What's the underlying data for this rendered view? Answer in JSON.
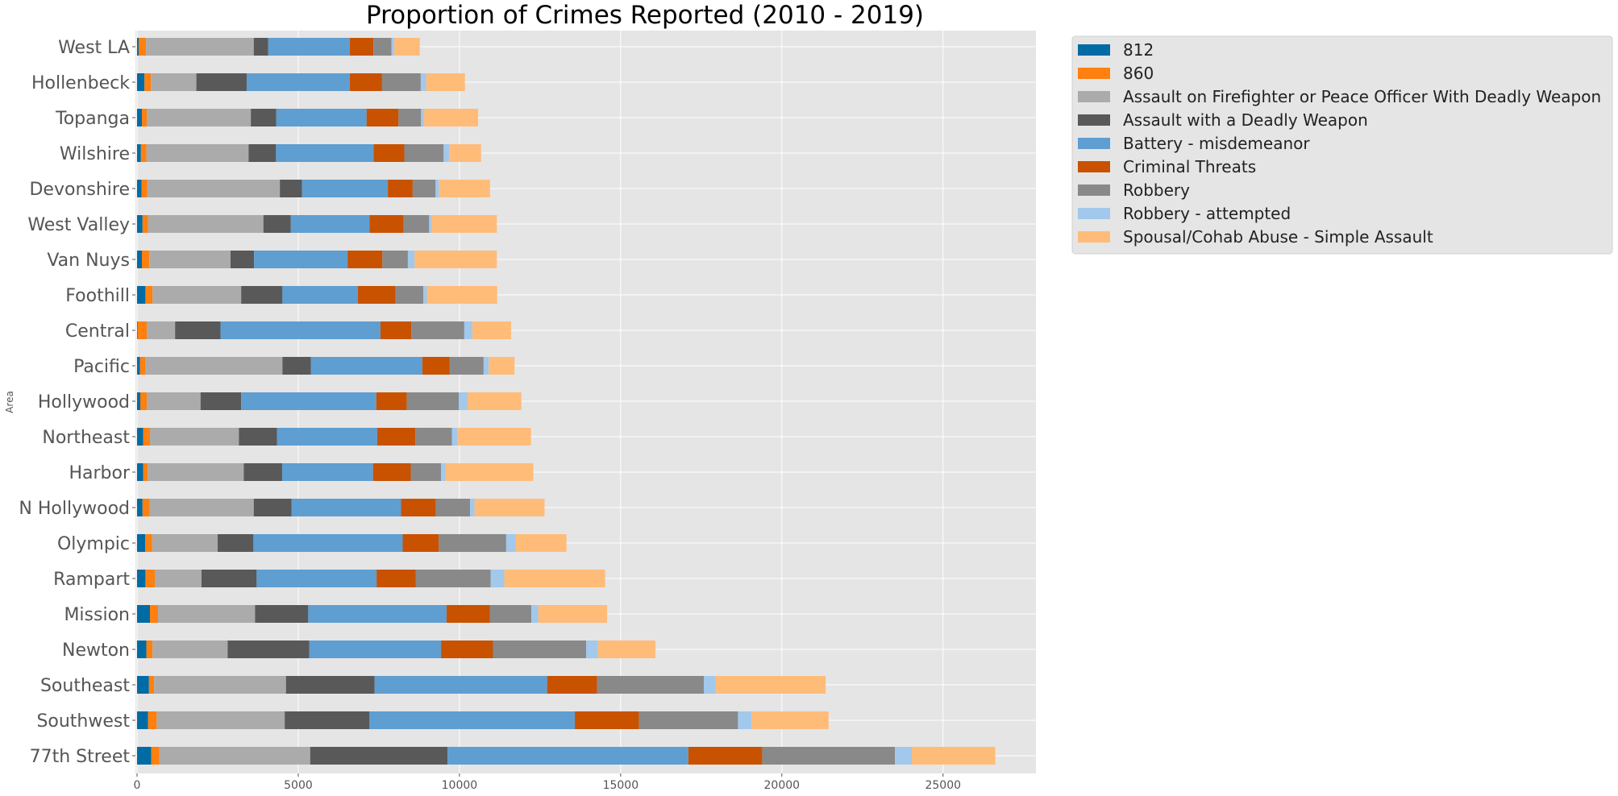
{
  "chart_data": {
    "type": "bar",
    "orientation": "horizontal",
    "stacked": true,
    "title": "Proportion of Crimes Reported (2010 - 2019)",
    "xlabel": "",
    "ylabel": "Area",
    "xlim": [
      0,
      28000
    ],
    "xticks": [
      0,
      5000,
      10000,
      15000,
      20000,
      25000
    ],
    "xtick_labels": [
      "0",
      "5000",
      "10000",
      "15000",
      "20000",
      "25000"
    ],
    "grid": true,
    "legend_position": "outside-top-right",
    "categories": [
      "West LA",
      "Hollenbeck",
      "Topanga",
      "Wilshire",
      "Devonshire",
      "West Valley",
      "Van Nuys",
      "Foothill",
      "Central",
      "Pacific",
      "Hollywood",
      "Northeast",
      "Harbor",
      "N Hollywood",
      "Olympic",
      "Rampart",
      "Mission",
      "Newton",
      "Southeast",
      "Southwest",
      "77th Street"
    ],
    "series": [
      {
        "name": "812",
        "color": "#006ba4",
        "values": [
          50,
          230,
          150,
          120,
          140,
          170,
          150,
          260,
          20,
          90,
          100,
          190,
          190,
          170,
          250,
          260,
          400,
          290,
          370,
          340,
          440
        ]
      },
      {
        "name": "860",
        "color": "#ff800e",
        "values": [
          230,
          200,
          150,
          170,
          180,
          170,
          230,
          220,
          280,
          170,
          200,
          210,
          140,
          220,
          220,
          290,
          250,
          190,
          160,
          270,
          250
        ]
      },
      {
        "name": "Assault on Firefighter or Peace Officer With Deadly Weapon",
        "color": "#ababab",
        "values": [
          3340,
          1410,
          3230,
          3170,
          4110,
          3580,
          2520,
          2750,
          880,
          4250,
          1670,
          2760,
          2980,
          3230,
          2030,
          1450,
          3010,
          2330,
          4090,
          3970,
          4680
        ]
      },
      {
        "name": "Assault with a Deadly Weapon",
        "color": "#595959",
        "values": [
          450,
          1560,
          790,
          850,
          690,
          850,
          730,
          1280,
          1410,
          880,
          1260,
          1180,
          1190,
          1170,
          1110,
          1710,
          1650,
          2530,
          2750,
          2630,
          4260
        ]
      },
      {
        "name": "Battery - misdemeanor",
        "color": "#5f9ed1",
        "values": [
          2530,
          3200,
          2800,
          3030,
          2660,
          2440,
          2900,
          2340,
          4960,
          3460,
          4190,
          3110,
          2820,
          3400,
          4630,
          3720,
          4290,
          4090,
          5350,
          6370,
          7470
        ]
      },
      {
        "name": "Criminal Threats",
        "color": "#c85200",
        "values": [
          730,
          1000,
          990,
          950,
          770,
          1060,
          1080,
          1170,
          960,
          840,
          950,
          1180,
          1170,
          1080,
          1120,
          1210,
          1340,
          1610,
          1550,
          1990,
          2290
        ]
      },
      {
        "name": "Robbery",
        "color": "#898989",
        "values": [
          560,
          1200,
          700,
          1220,
          710,
          790,
          790,
          860,
          1640,
          1060,
          1610,
          1140,
          940,
          1060,
          2090,
          2330,
          1290,
          2890,
          3310,
          3070,
          4120
        ]
      },
      {
        "name": "Robbery - attempted",
        "color": "#a2c8ec",
        "values": [
          90,
          170,
          90,
          170,
          110,
          80,
          210,
          110,
          250,
          160,
          260,
          160,
          140,
          140,
          300,
          420,
          210,
          370,
          370,
          420,
          520
        ]
      },
      {
        "name": "Spousal/Cohab Abuse - Simple Assault",
        "color": "#ffbc79",
        "values": [
          790,
          1200,
          1680,
          990,
          1580,
          2020,
          2550,
          2180,
          1200,
          800,
          1680,
          2290,
          2720,
          2170,
          1570,
          3130,
          2140,
          1780,
          3410,
          2390,
          2590
        ]
      }
    ]
  }
}
